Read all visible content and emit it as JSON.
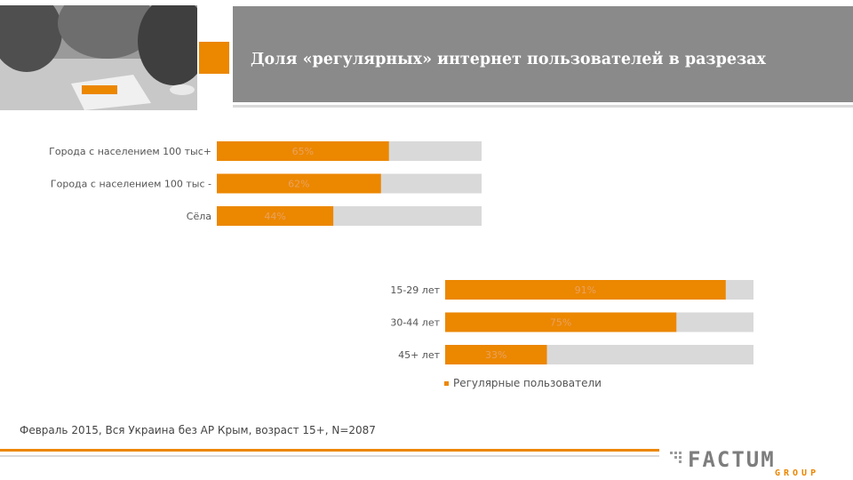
{
  "header": {
    "title": "Доля «регулярных» интернет пользователей в разрезах"
  },
  "colors": {
    "accent": "#ec8700",
    "track": "#d9d9d9",
    "title_panel": "#8a8a8a",
    "value_label": "#e9a25c"
  },
  "chart_data": [
    {
      "type": "bar",
      "orientation": "horizontal",
      "categories": [
        "Города с населением 100 тыс+",
        "Города с населением 100 тыс -",
        "Сёла"
      ],
      "values": [
        65,
        62,
        44
      ],
      "value_labels": [
        "65%",
        "62%",
        "44%"
      ],
      "xlim": [
        0,
        100
      ],
      "grid": false
    },
    {
      "type": "bar",
      "orientation": "horizontal",
      "categories": [
        "15-29 лет",
        "30-44 лет",
        "45+ лет"
      ],
      "values": [
        91,
        75,
        33
      ],
      "value_labels": [
        "91%",
        "75%",
        "33%"
      ],
      "xlim": [
        0,
        100
      ],
      "grid": false
    }
  ],
  "legend": {
    "label": "Регулярные пользователи",
    "placement": "bottom"
  },
  "footer": {
    "source": "Февраль 2015, Вся Украина без АР Крым, возраст 15+, N=2087",
    "logo_main": "FACTUM",
    "logo_sub": "GROUP"
  }
}
